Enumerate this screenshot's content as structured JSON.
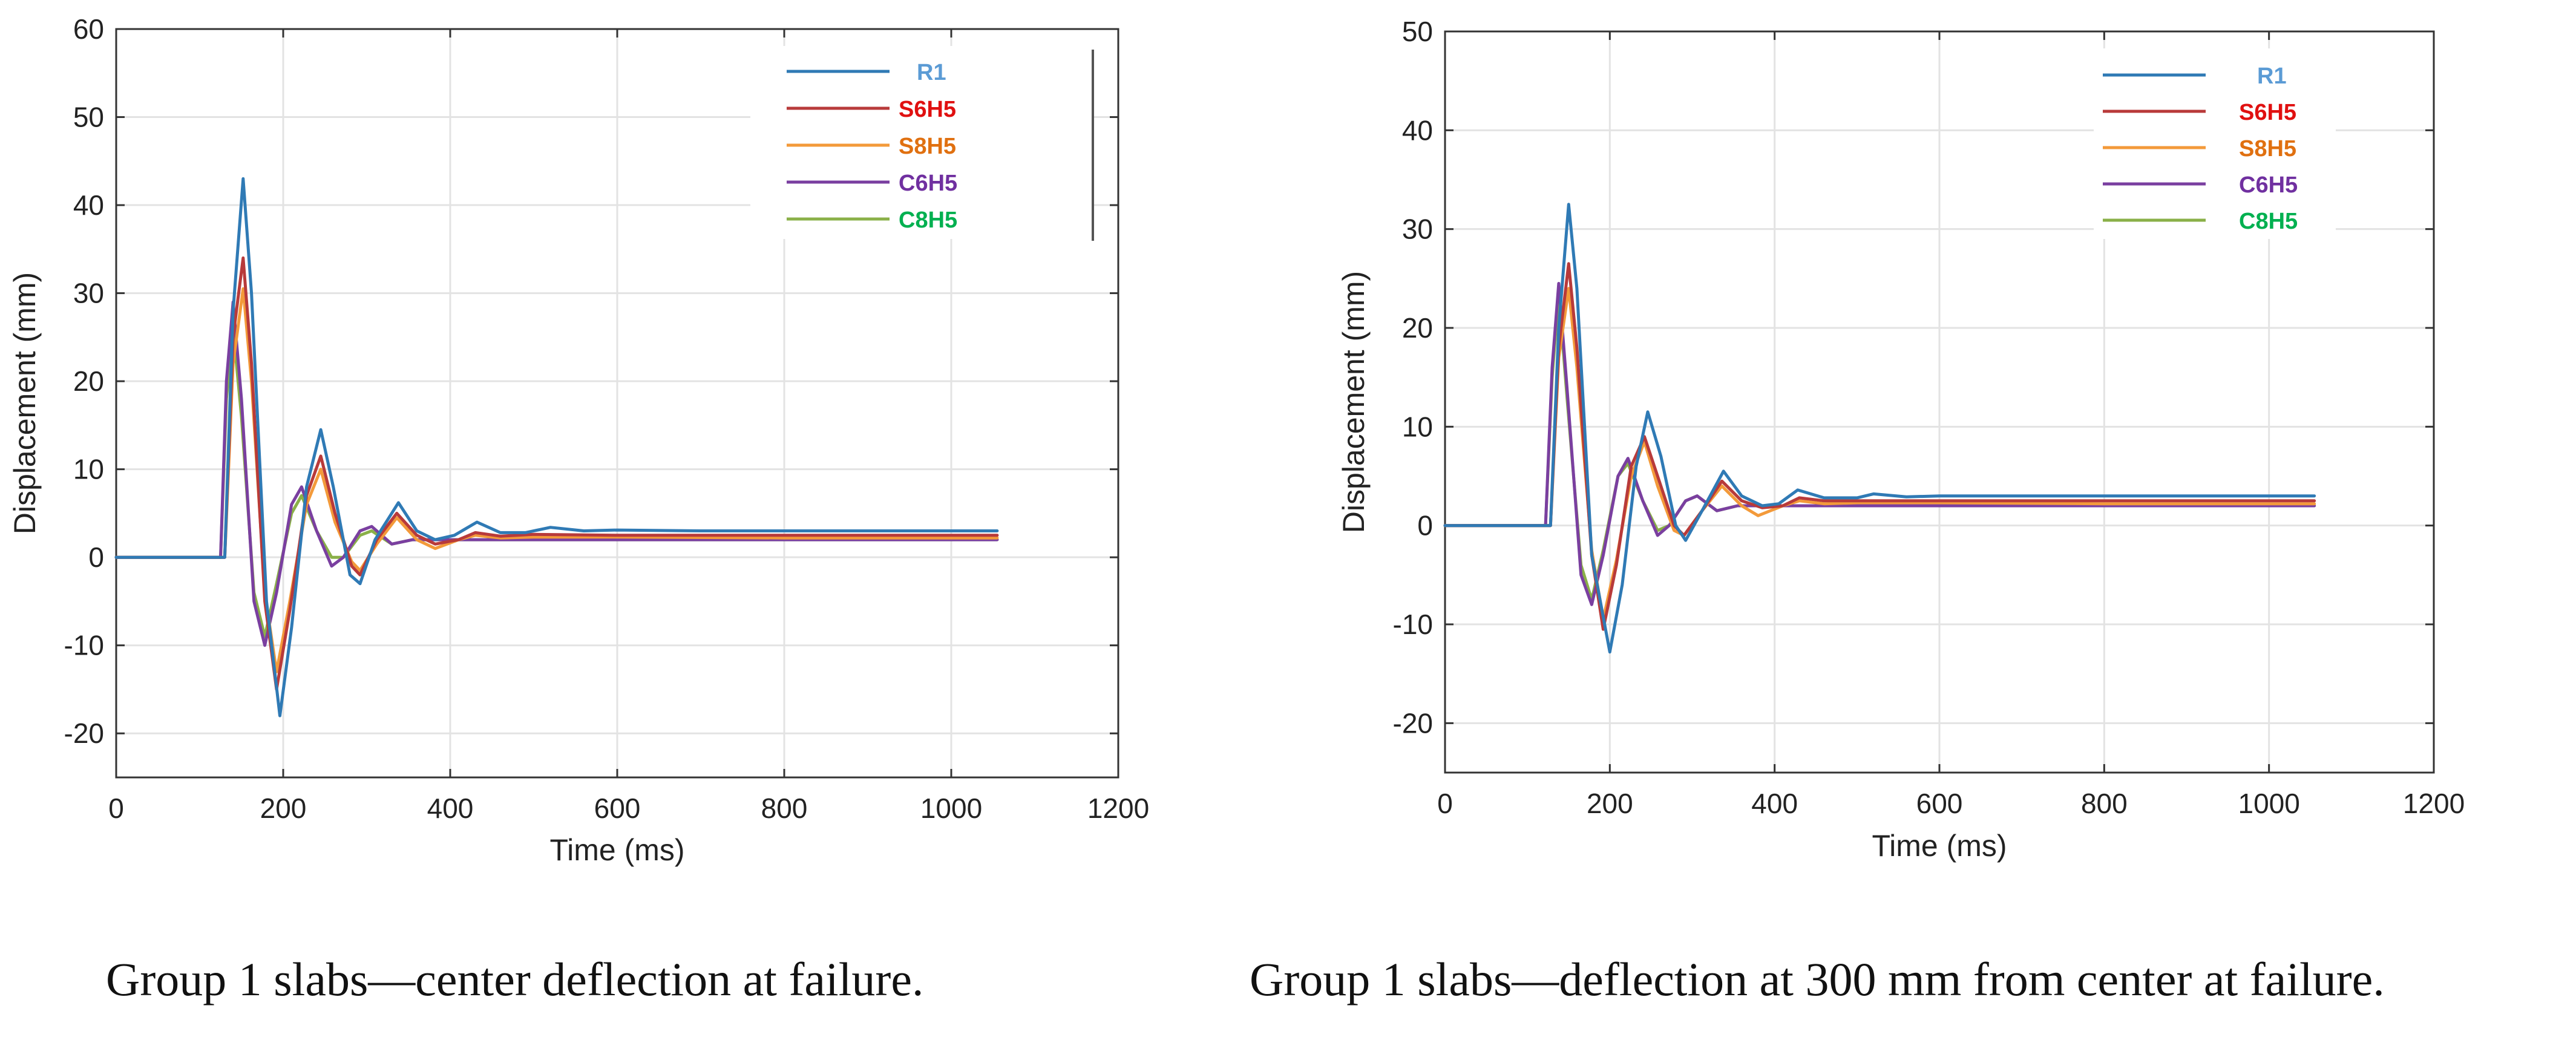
{
  "colors": {
    "R1": "#2f7ab5",
    "S6H5": "#b83a3a",
    "S8H5": "#f39a3a",
    "C6H5": "#7a3fa0",
    "C8H5": "#8ab048",
    "legend_R1_text": "#5b9bd5",
    "legend_S6H5_text": "#e01010",
    "legend_S8H5_text": "#e07010",
    "legend_C6H5_text": "#7030a0",
    "legend_C8H5_text": "#00b050",
    "axis": "#333333",
    "grid": "#e3e3e3"
  },
  "captions": {
    "left": "Group 1 slabs—center deflection at failure.",
    "right": "Group 1 slabs—deflection at 300 mm from center at failure."
  },
  "chart_data": [
    {
      "type": "line",
      "title": "",
      "xlabel": "Time (ms)",
      "ylabel": "Displacement (mm)",
      "xlim": [
        0,
        1200
      ],
      "ylim": [
        -25,
        60
      ],
      "xticks": [
        0,
        200,
        400,
        600,
        800,
        1000,
        1200
      ],
      "yticks": [
        -20,
        -10,
        0,
        10,
        20,
        30,
        40,
        50,
        60
      ],
      "grid": true,
      "legend_position": "top-right",
      "series": [
        {
          "name": "R1",
          "points": [
            [
              0,
              0
            ],
            [
              130,
              0
            ],
            [
              140,
              28
            ],
            [
              152,
              43
            ],
            [
              162,
              30
            ],
            [
              180,
              -5
            ],
            [
              196,
              -18
            ],
            [
              210,
              -8
            ],
            [
              228,
              8
            ],
            [
              245,
              14.5
            ],
            [
              260,
              8
            ],
            [
              280,
              -2
            ],
            [
              292,
              -3
            ],
            [
              310,
              2
            ],
            [
              338,
              6.2
            ],
            [
              360,
              3
            ],
            [
              382,
              2
            ],
            [
              405,
              2.5
            ],
            [
              432,
              4
            ],
            [
              460,
              2.8
            ],
            [
              490,
              2.8
            ],
            [
              520,
              3.4
            ],
            [
              560,
              3
            ],
            [
              600,
              3.1
            ],
            [
              700,
              3
            ],
            [
              800,
              3
            ],
            [
              900,
              3
            ],
            [
              1000,
              3
            ],
            [
              1055,
              3
            ]
          ]
        },
        {
          "name": "S6H5",
          "points": [
            [
              0,
              0
            ],
            [
              130,
              0
            ],
            [
              140,
              25
            ],
            [
              152,
              34
            ],
            [
              162,
              22
            ],
            [
              178,
              -5
            ],
            [
              192,
              -15
            ],
            [
              208,
              -6
            ],
            [
              228,
              7
            ],
            [
              245,
              11.5
            ],
            [
              262,
              5
            ],
            [
              282,
              -1
            ],
            [
              292,
              -2
            ],
            [
              312,
              2
            ],
            [
              336,
              5
            ],
            [
              360,
              2.5
            ],
            [
              382,
              1.5
            ],
            [
              410,
              2
            ],
            [
              430,
              2.8
            ],
            [
              460,
              2.4
            ],
            [
              500,
              2.6
            ],
            [
              600,
              2.5
            ],
            [
              800,
              2.5
            ],
            [
              1055,
              2.5
            ]
          ]
        },
        {
          "name": "S8H5",
          "points": [
            [
              0,
              0
            ],
            [
              130,
              0
            ],
            [
              140,
              22
            ],
            [
              152,
              30.5
            ],
            [
              162,
              20
            ],
            [
              178,
              -4
            ],
            [
              192,
              -13
            ],
            [
              208,
              -5
            ],
            [
              228,
              6
            ],
            [
              245,
              10
            ],
            [
              262,
              4
            ],
            [
              282,
              -0.5
            ],
            [
              292,
              -1.5
            ],
            [
              312,
              1.5
            ],
            [
              336,
              4.5
            ],
            [
              360,
              2
            ],
            [
              382,
              1
            ],
            [
              410,
              2
            ],
            [
              430,
              2.5
            ],
            [
              460,
              2.2
            ],
            [
              500,
              2.3
            ],
            [
              600,
              2.3
            ],
            [
              800,
              2.2
            ],
            [
              1055,
              2.2
            ]
          ]
        },
        {
          "name": "C6H5",
          "points": [
            [
              0,
              0
            ],
            [
              125,
              0
            ],
            [
              132,
              20
            ],
            [
              140,
              29
            ],
            [
              150,
              18
            ],
            [
              165,
              -5
            ],
            [
              178,
              -10
            ],
            [
              192,
              -4
            ],
            [
              210,
              6
            ],
            [
              222,
              8
            ],
            [
              240,
              3
            ],
            [
              258,
              -1
            ],
            [
              272,
              0
            ],
            [
              292,
              3
            ],
            [
              306,
              3.5
            ],
            [
              330,
              1.5
            ],
            [
              355,
              2
            ],
            [
              400,
              2
            ],
            [
              500,
              2
            ],
            [
              700,
              2
            ],
            [
              1055,
              2
            ]
          ]
        },
        {
          "name": "C8H5",
          "points": [
            [
              0,
              0
            ],
            [
              125,
              0
            ],
            [
              132,
              18
            ],
            [
              140,
              26
            ],
            [
              150,
              16
            ],
            [
              165,
              -4
            ],
            [
              178,
              -9
            ],
            [
              192,
              -3
            ],
            [
              210,
              5
            ],
            [
              222,
              7
            ],
            [
              240,
              3
            ],
            [
              258,
              0
            ],
            [
              272,
              0
            ],
            [
              292,
              2.5
            ],
            [
              306,
              3
            ],
            [
              330,
              1.5
            ],
            [
              355,
              2
            ],
            [
              400,
              2
            ],
            [
              500,
              2
            ],
            [
              700,
              2
            ],
            [
              1055,
              2
            ]
          ]
        }
      ]
    },
    {
      "type": "line",
      "title": "",
      "xlabel": "Time (ms)",
      "ylabel": "Displacement (mm)",
      "xlim": [
        0,
        1200
      ],
      "ylim": [
        -25,
        50
      ],
      "xticks": [
        0,
        200,
        400,
        600,
        800,
        1000,
        1200
      ],
      "yticks": [
        -20,
        -10,
        0,
        10,
        20,
        30,
        40,
        50
      ],
      "grid": true,
      "legend_position": "top-right",
      "series": [
        {
          "name": "R1",
          "points": [
            [
              0,
              0
            ],
            [
              128,
              0
            ],
            [
              138,
              20
            ],
            [
              150,
              32.5
            ],
            [
              160,
              24
            ],
            [
              178,
              -3
            ],
            [
              200,
              -12.8
            ],
            [
              215,
              -6
            ],
            [
              232,
              6
            ],
            [
              246,
              11.5
            ],
            [
              262,
              7
            ],
            [
              280,
              0
            ],
            [
              292,
              -1.5
            ],
            [
              312,
              1.5
            ],
            [
              338,
              5.5
            ],
            [
              360,
              3
            ],
            [
              385,
              2
            ],
            [
              405,
              2.2
            ],
            [
              428,
              3.6
            ],
            [
              460,
              2.8
            ],
            [
              500,
              2.8
            ],
            [
              520,
              3.2
            ],
            [
              560,
              2.9
            ],
            [
              600,
              3
            ],
            [
              700,
              3
            ],
            [
              800,
              3
            ],
            [
              900,
              3
            ],
            [
              1055,
              3
            ]
          ]
        },
        {
          "name": "S6H5",
          "points": [
            [
              0,
              0
            ],
            [
              128,
              0
            ],
            [
              138,
              18
            ],
            [
              150,
              26.5
            ],
            [
              160,
              18
            ],
            [
              178,
              -3
            ],
            [
              192,
              -10.5
            ],
            [
              208,
              -4
            ],
            [
              226,
              6
            ],
            [
              242,
              9
            ],
            [
              258,
              5
            ],
            [
              278,
              0
            ],
            [
              290,
              -1
            ],
            [
              312,
              1.5
            ],
            [
              336,
              4.5
            ],
            [
              360,
              2.5
            ],
            [
              385,
              1.8
            ],
            [
              410,
              2
            ],
            [
              430,
              2.8
            ],
            [
              460,
              2.5
            ],
            [
              500,
              2.5
            ],
            [
              600,
              2.5
            ],
            [
              800,
              2.5
            ],
            [
              1055,
              2.5
            ]
          ]
        },
        {
          "name": "S8H5",
          "points": [
            [
              0,
              0
            ],
            [
              128,
              0
            ],
            [
              138,
              17
            ],
            [
              150,
              24
            ],
            [
              160,
              16
            ],
            [
              178,
              -2.5
            ],
            [
              192,
              -9.5
            ],
            [
              208,
              -3.5
            ],
            [
              226,
              5
            ],
            [
              242,
              8.5
            ],
            [
              258,
              4
            ],
            [
              278,
              -0.5
            ],
            [
              290,
              -1
            ],
            [
              312,
              1.5
            ],
            [
              336,
              4
            ],
            [
              360,
              2
            ],
            [
              380,
              1
            ],
            [
              410,
              2
            ],
            [
              430,
              2.5
            ],
            [
              460,
              2.2
            ],
            [
              500,
              2.3
            ],
            [
              600,
              2.3
            ],
            [
              800,
              2.2
            ],
            [
              1055,
              2.2
            ]
          ]
        },
        {
          "name": "C6H5",
          "points": [
            [
              0,
              0
            ],
            [
              122,
              0
            ],
            [
              130,
              16
            ],
            [
              138,
              24.5
            ],
            [
              148,
              14
            ],
            [
              165,
              -5
            ],
            [
              178,
              -8
            ],
            [
              192,
              -3
            ],
            [
              210,
              5
            ],
            [
              222,
              6.8
            ],
            [
              240,
              2.5
            ],
            [
              258,
              -1
            ],
            [
              272,
              0
            ],
            [
              292,
              2.5
            ],
            [
              306,
              3
            ],
            [
              330,
              1.5
            ],
            [
              355,
              2
            ],
            [
              400,
              2
            ],
            [
              500,
              2
            ],
            [
              700,
              2
            ],
            [
              1055,
              2
            ]
          ]
        },
        {
          "name": "C8H5",
          "points": [
            [
              0,
              0
            ],
            [
              122,
              0
            ],
            [
              130,
              15
            ],
            [
              138,
              23.5
            ],
            [
              148,
              13
            ],
            [
              165,
              -4
            ],
            [
              178,
              -7.5
            ],
            [
              192,
              -2.5
            ],
            [
              210,
              5
            ],
            [
              222,
              6.3
            ],
            [
              240,
              2.5
            ],
            [
              258,
              -0.5
            ],
            [
              272,
              0
            ],
            [
              292,
              2.5
            ],
            [
              306,
              3
            ],
            [
              330,
              1.5
            ],
            [
              355,
              2
            ],
            [
              400,
              2
            ],
            [
              500,
              2
            ],
            [
              700,
              2
            ],
            [
              1055,
              2
            ]
          ]
        }
      ]
    }
  ]
}
